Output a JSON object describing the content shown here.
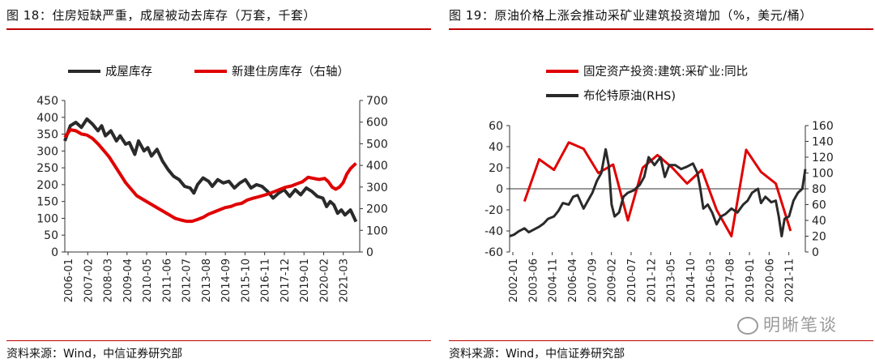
{
  "left": {
    "title": "图 18：住房短缺严重，成屋被动去库存（万套，千套）",
    "source": "资料来源：Wind，中信证券研究部"
  },
  "right": {
    "title": "图 19：原油价格上涨会推动采矿业建筑投资增加（%，美元/桶）",
    "source": "资料来源：Wind，中信证券研究部"
  },
  "watermark": {
    "text": "明晰笔谈",
    "icon": "wechat-icon"
  },
  "colors": {
    "red": "#e00000",
    "black": "#2a2a2a",
    "rule": "#c00000"
  },
  "chart_data": [
    {
      "type": "line",
      "title": "住房短缺严重，成屋被动去库存（万套，千套）",
      "x_tick_labels": [
        "2006-01",
        "2007-02",
        "2008-03",
        "2009-04",
        "2010-05",
        "2011-06",
        "2012-07",
        "2013-08",
        "2014-09",
        "2015-10",
        "2016-11",
        "2017-12",
        "2019-01",
        "2020-02",
        "2021-03"
      ],
      "x_range": [
        2006.0,
        2022.0
      ],
      "y_left": {
        "min": 0,
        "max": 450,
        "ticks": [
          0,
          50,
          100,
          150,
          200,
          250,
          300,
          350,
          400,
          450
        ]
      },
      "y_right": {
        "min": 0,
        "max": 700,
        "ticks": [
          0,
          100,
          200,
          300,
          400,
          500,
          600,
          700
        ]
      },
      "legend": "top",
      "series": [
        {
          "name": "成屋库存",
          "axis": "left",
          "color": "#2a2a2a",
          "x": [
            2006.0,
            2006.3,
            2006.6,
            2006.9,
            2007.2,
            2007.5,
            2007.8,
            2008.0,
            2008.2,
            2008.5,
            2008.8,
            2009.0,
            2009.3,
            2009.5,
            2009.8,
            2010.0,
            2010.3,
            2010.5,
            2010.7,
            2011.0,
            2011.3,
            2011.6,
            2011.9,
            2012.2,
            2012.5,
            2012.8,
            2013.0,
            2013.2,
            2013.5,
            2013.8,
            2014.0,
            2014.3,
            2014.6,
            2014.9,
            2015.2,
            2015.5,
            2015.8,
            2016.1,
            2016.4,
            2016.7,
            2017.0,
            2017.3,
            2017.6,
            2017.9,
            2018.2,
            2018.5,
            2018.8,
            2019.1,
            2019.4,
            2019.7,
            2020.0,
            2020.2,
            2020.4,
            2020.6,
            2020.8,
            2021.0,
            2021.2,
            2021.5,
            2021.8
          ],
          "values": [
            330,
            375,
            385,
            370,
            395,
            380,
            360,
            375,
            345,
            360,
            330,
            345,
            320,
            325,
            290,
            330,
            300,
            310,
            285,
            305,
            270,
            245,
            225,
            215,
            195,
            190,
            175,
            200,
            220,
            210,
            195,
            215,
            205,
            210,
            190,
            205,
            215,
            190,
            200,
            195,
            180,
            160,
            175,
            185,
            165,
            185,
            170,
            190,
            180,
            165,
            160,
            135,
            150,
            140,
            115,
            125,
            110,
            125,
            90
          ]
        },
        {
          "name": "新建住房库存（右轴）",
          "axis": "right",
          "color": "#e00000",
          "x": [
            2006.0,
            2006.3,
            2006.6,
            2006.9,
            2007.2,
            2007.5,
            2007.8,
            2008.1,
            2008.4,
            2008.7,
            2009.0,
            2009.3,
            2009.6,
            2009.9,
            2010.2,
            2010.5,
            2010.8,
            2011.1,
            2011.4,
            2011.7,
            2012.0,
            2012.3,
            2012.6,
            2012.9,
            2013.2,
            2013.5,
            2013.8,
            2014.1,
            2014.4,
            2014.7,
            2015.0,
            2015.3,
            2015.6,
            2015.9,
            2016.2,
            2016.5,
            2016.8,
            2017.1,
            2017.4,
            2017.7,
            2018.0,
            2018.3,
            2018.6,
            2018.9,
            2019.2,
            2019.5,
            2019.8,
            2020.1,
            2020.3,
            2020.5,
            2020.7,
            2020.9,
            2021.1,
            2021.3,
            2021.5,
            2021.8
          ],
          "values": [
            530,
            565,
            560,
            545,
            540,
            525,
            500,
            470,
            440,
            400,
            360,
            320,
            290,
            260,
            245,
            230,
            215,
            200,
            185,
            170,
            155,
            148,
            142,
            142,
            150,
            160,
            175,
            185,
            195,
            205,
            210,
            220,
            225,
            240,
            248,
            255,
            262,
            270,
            280,
            290,
            300,
            305,
            315,
            325,
            345,
            340,
            335,
            340,
            325,
            300,
            290,
            300,
            320,
            360,
            385,
            410
          ]
        }
      ]
    },
    {
      "type": "line",
      "title": "原油价格上涨会推动采矿业建筑投资增加（%，美元/桶）",
      "x_tick_labels": [
        "2002-01",
        "2003-06",
        "2004-11",
        "2006-04",
        "2007-09",
        "2009-02",
        "2010-07",
        "2011-12",
        "2013-05",
        "2014-10",
        "2016-03",
        "2017-08",
        "2019-01",
        "2020-06",
        "2021-11"
      ],
      "x_range": [
        2002.0,
        2022.0
      ],
      "y_left": {
        "min": -60,
        "max": 60,
        "ticks": [
          -60,
          -40,
          -20,
          0,
          20,
          40,
          60
        ]
      },
      "y_right": {
        "min": 0,
        "max": 160,
        "ticks": [
          0,
          20,
          40,
          60,
          80,
          100,
          120,
          140,
          160
        ]
      },
      "legend": "top",
      "series": [
        {
          "name": "固定资产投资:建筑:采矿业:同比",
          "axis": "left",
          "color": "#e00000",
          "x": [
            2003.0,
            2004.0,
            2005.0,
            2006.0,
            2007.0,
            2008.0,
            2009.0,
            2010.0,
            2011.0,
            2012.0,
            2013.0,
            2014.0,
            2015.0,
            2016.0,
            2017.0,
            2018.0,
            2019.0,
            2020.0,
            2021.0
          ],
          "values": [
            -12,
            28,
            18,
            44,
            38,
            15,
            23,
            -30,
            20,
            32,
            20,
            5,
            18,
            -20,
            -45,
            37,
            16,
            5,
            -40
          ]
        },
        {
          "name": "布伦特原油(RHS)",
          "axis": "right",
          "color": "#2a2a2a",
          "x": [
            2002.0,
            2002.3,
            2002.6,
            2003.0,
            2003.3,
            2003.6,
            2004.0,
            2004.3,
            2004.6,
            2005.0,
            2005.3,
            2005.6,
            2006.0,
            2006.3,
            2006.6,
            2007.0,
            2007.3,
            2007.6,
            2007.9,
            2008.2,
            2008.5,
            2008.7,
            2008.9,
            2009.1,
            2009.4,
            2009.7,
            2010.0,
            2010.4,
            2010.8,
            2011.1,
            2011.4,
            2011.8,
            2012.2,
            2012.5,
            2012.8,
            2013.2,
            2013.6,
            2014.0,
            2014.4,
            2014.7,
            2014.9,
            2015.1,
            2015.4,
            2015.7,
            2016.0,
            2016.3,
            2016.6,
            2017.0,
            2017.4,
            2017.8,
            2018.1,
            2018.4,
            2018.8,
            2019.0,
            2019.3,
            2019.7,
            2020.0,
            2020.2,
            2020.4,
            2020.6,
            2020.9,
            2021.2,
            2021.5,
            2021.8,
            2022.0
          ],
          "values": [
            20,
            22,
            26,
            30,
            25,
            28,
            32,
            36,
            42,
            45,
            52,
            62,
            60,
            70,
            72,
            55,
            65,
            75,
            90,
            100,
            130,
            110,
            60,
            45,
            50,
            70,
            75,
            78,
            85,
            95,
            120,
            110,
            120,
            95,
            110,
            110,
            105,
            108,
            112,
            100,
            80,
            55,
            60,
            50,
            35,
            45,
            48,
            55,
            50,
            60,
            65,
            75,
            80,
            62,
            70,
            63,
            65,
            45,
            20,
            42,
            45,
            65,
            75,
            80,
            105
          ]
        }
      ]
    }
  ]
}
